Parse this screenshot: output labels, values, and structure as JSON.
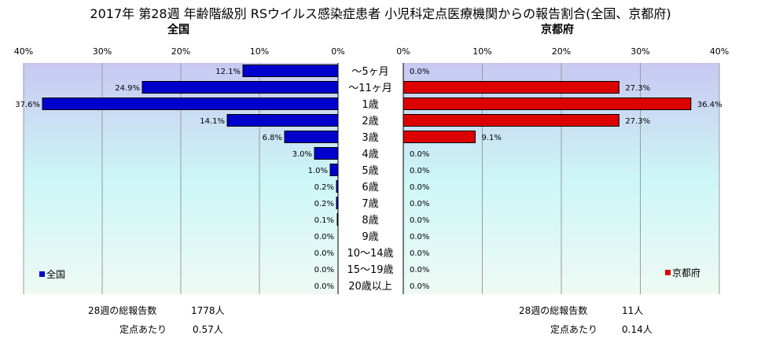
{
  "title": "2017年 第28週 年齢階級別 RSウイルス感染症患者 小児科定点医療機関からの報告割合(全国、京都府)",
  "panels": {
    "left": {
      "title": "全国",
      "legend": "全国",
      "color": "#0000cc"
    },
    "right": {
      "title": "京都府",
      "legend": "京都府",
      "color": "#dd0000"
    }
  },
  "chart_data": {
    "type": "bar",
    "orientation": "horizontal",
    "xlim": [
      0,
      40
    ],
    "x_ticks": [
      "40%",
      "30%",
      "20%",
      "10%",
      "0%"
    ],
    "x_ticks_right": [
      "0%",
      "10%",
      "20%",
      "30%",
      "40%"
    ],
    "categories": [
      "～5ヶ月",
      "～11ヶ月",
      "1歳",
      "2歳",
      "3歳",
      "4歳",
      "5歳",
      "6歳",
      "7歳",
      "8歳",
      "9歳",
      "10～14歳",
      "15～19歳",
      "20歳以上"
    ],
    "series": [
      {
        "name": "全国",
        "values": [
          12.1,
          24.9,
          37.6,
          14.1,
          6.8,
          3.0,
          1.0,
          0.2,
          0.2,
          0.1,
          0.0,
          0.0,
          0.0,
          0.0
        ],
        "labels": [
          "12.1%",
          "24.9%",
          "37.6%",
          "14.1%",
          "6.8%",
          "3.0%",
          "1.0%",
          "0.2%",
          "0.2%",
          "0.1%",
          "0.0%",
          "0.0%",
          "0.0%",
          "0.0%"
        ]
      },
      {
        "name": "京都府",
        "values": [
          0.0,
          27.3,
          36.4,
          27.3,
          9.1,
          0.0,
          0.0,
          0.0,
          0.0,
          0.0,
          0.0,
          0.0,
          0.0,
          0.0
        ],
        "labels": [
          "0.0%",
          "27.3%",
          "36.4%",
          "27.3%",
          "9.1%",
          "0.0%",
          "0.0%",
          "0.0%",
          "0.0%",
          "0.0%",
          "0.0%",
          "0.0%",
          "0.0%",
          "0.0%"
        ]
      }
    ],
    "grid": true
  },
  "footer": {
    "left": {
      "total_label": "28週の総報告数",
      "total_value": "1778人",
      "per_label": "定点あたり",
      "per_value": "0.57人"
    },
    "right": {
      "total_label": "28週の総報告数",
      "total_value": "11人",
      "per_label": "定点あたり",
      "per_value": "0.14人"
    }
  }
}
